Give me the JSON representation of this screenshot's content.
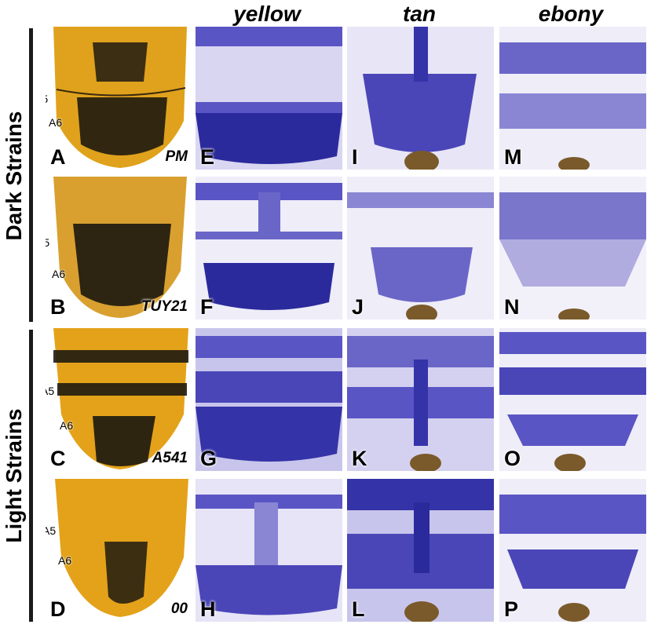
{
  "column_headers": [
    "yellow",
    "tan",
    "ebony"
  ],
  "groups": [
    {
      "label": "Dark Strains"
    },
    {
      "label": "Light Strains"
    }
  ],
  "segment_labels": {
    "a5": "A5",
    "a6": "A6"
  },
  "rows": [
    {
      "strain": "PM",
      "letters": [
        "A",
        "E",
        "I",
        "M"
      ]
    },
    {
      "strain": "TUY21",
      "letters": [
        "B",
        "F",
        "J",
        "N"
      ]
    },
    {
      "strain": "A541",
      "letters": [
        "C",
        "G",
        "K",
        "O"
      ]
    },
    {
      "strain": "00",
      "letters": [
        "D",
        "H",
        "L",
        "P"
      ]
    }
  ],
  "colors": {
    "stain_dark": "#2b2a9c",
    "stain_mid": "#5a55c4",
    "stain_light": "#d9d6f2",
    "cuticle_yellow": "#e0a21c",
    "cuticle_dark": "#1e1a10",
    "background": "#ffffff"
  }
}
